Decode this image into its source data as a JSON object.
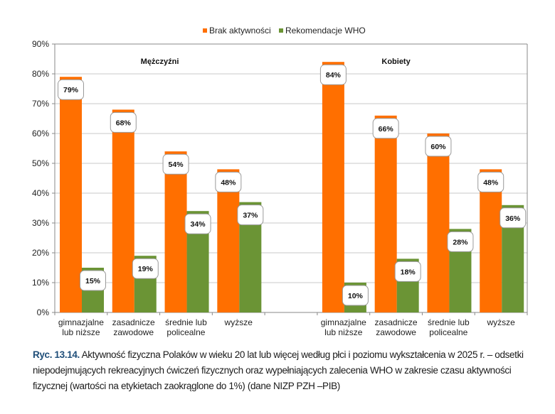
{
  "chart_data": {
    "type": "bar",
    "legend": {
      "position": "top",
      "entries": [
        {
          "name": "Brak aktywności",
          "color": "#ff6f00"
        },
        {
          "name": "Rekomendacje WHO",
          "color": "#6b9435"
        }
      ]
    },
    "ylim": [
      0,
      90
    ],
    "yticks": [
      0,
      10,
      20,
      30,
      40,
      50,
      60,
      70,
      80,
      90
    ],
    "ytick_labels": [
      "0%",
      "10%",
      "20%",
      "30%",
      "40%",
      "50%",
      "60%",
      "70%",
      "80%",
      "90%"
    ],
    "grid": true,
    "xlabel": "",
    "ylabel": "",
    "panels": [
      {
        "title": "Mężczyźni",
        "categories": [
          [
            "gimnazjalne",
            "lub niższe"
          ],
          [
            "zasadnicze",
            "zawodowe"
          ],
          [
            "średnie lub",
            "policealne"
          ],
          [
            "wyższe"
          ]
        ],
        "series": [
          {
            "name": "Brak aktywności",
            "values": [
              79,
              68,
              54,
              48
            ],
            "labels": [
              "79%",
              "68%",
              "54%",
              "48%"
            ]
          },
          {
            "name": "Rekomendacje WHO",
            "values": [
              15,
              19,
              34,
              37
            ],
            "labels": [
              "15%",
              "19%",
              "34%",
              "37%"
            ]
          }
        ]
      },
      {
        "title": "Kobiety",
        "categories": [
          [
            "gimnazjalne",
            "lub niższe"
          ],
          [
            "zasadnicze",
            "zawodowe"
          ],
          [
            "średnie lub",
            "policealne"
          ],
          [
            "wyższe"
          ]
        ],
        "series": [
          {
            "name": "Brak aktywności",
            "values": [
              84,
              66,
              60,
              48
            ],
            "labels": [
              "84%",
              "66%",
              "60%",
              "48%"
            ]
          },
          {
            "name": "Rekomendacje WHO",
            "values": [
              10,
              18,
              28,
              36
            ],
            "labels": [
              "10%",
              "18%",
              "28%",
              "36%"
            ]
          }
        ]
      }
    ]
  },
  "caption": {
    "figure_number": "Ryc. 13.14.",
    "text": " Aktywność fizyczna Polaków w wieku 20 lat lub więcej według płci i poziomu wykształcenia w 2025 r. – odsetki niepodejmujących rekreacyjnych ćwiczeń fizycznych oraz wypełniających zalecenia WHO w zakresie czasu aktywności fizycznej (wartości na etykietach zaokrąglone do 1%) (dane NIZP PZH –PIB)"
  }
}
